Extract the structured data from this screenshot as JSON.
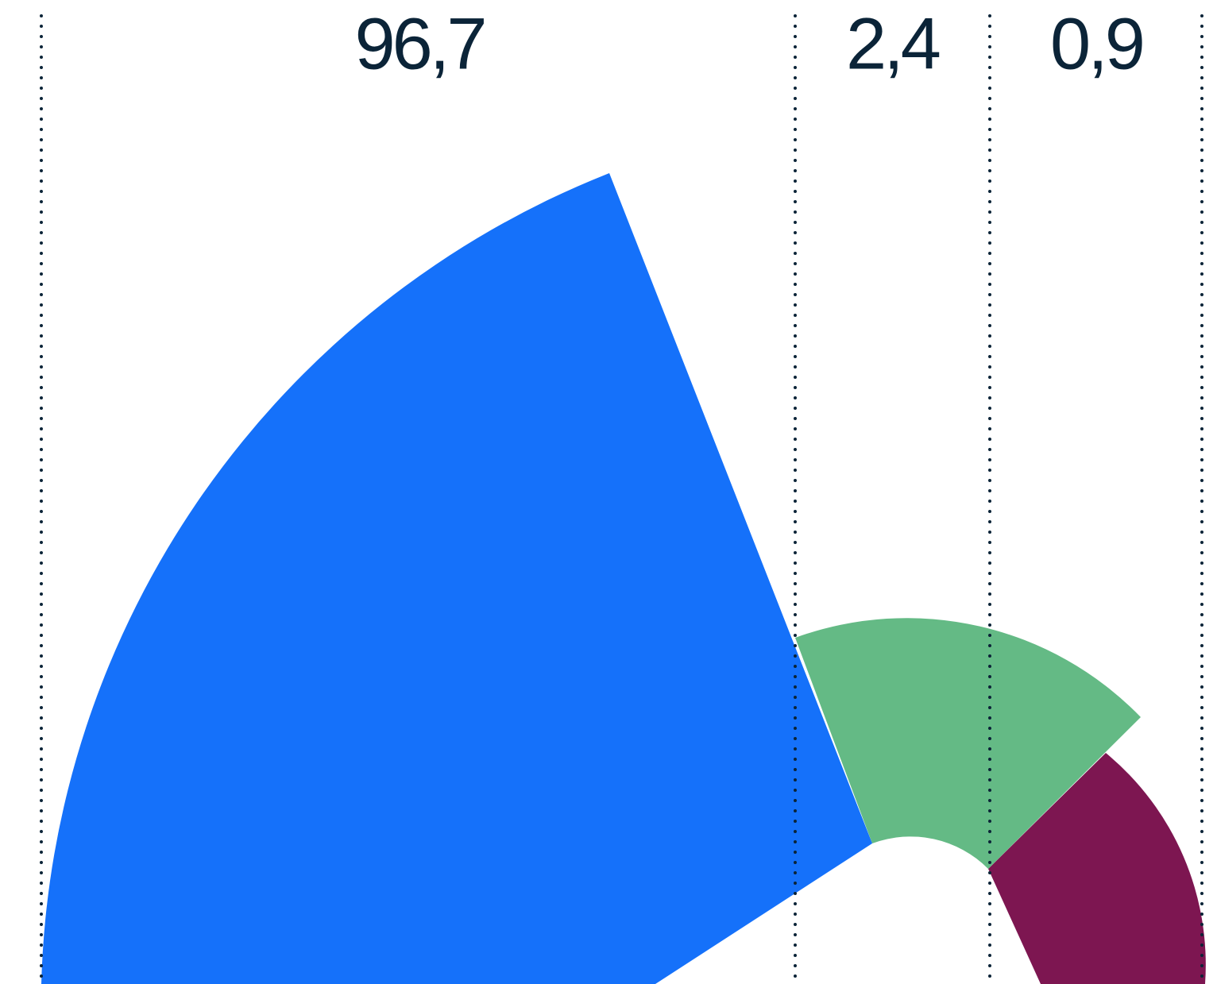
{
  "chart_data": {
    "type": "pie",
    "series": [
      {
        "values": [
          96.7,
          2.4,
          0.9
        ],
        "value_labels": [
          "96,7",
          "2,4",
          "0,9"
        ],
        "colors": [
          "#1571fa",
          "#64ba85",
          "#7d1651"
        ]
      }
    ]
  }
}
